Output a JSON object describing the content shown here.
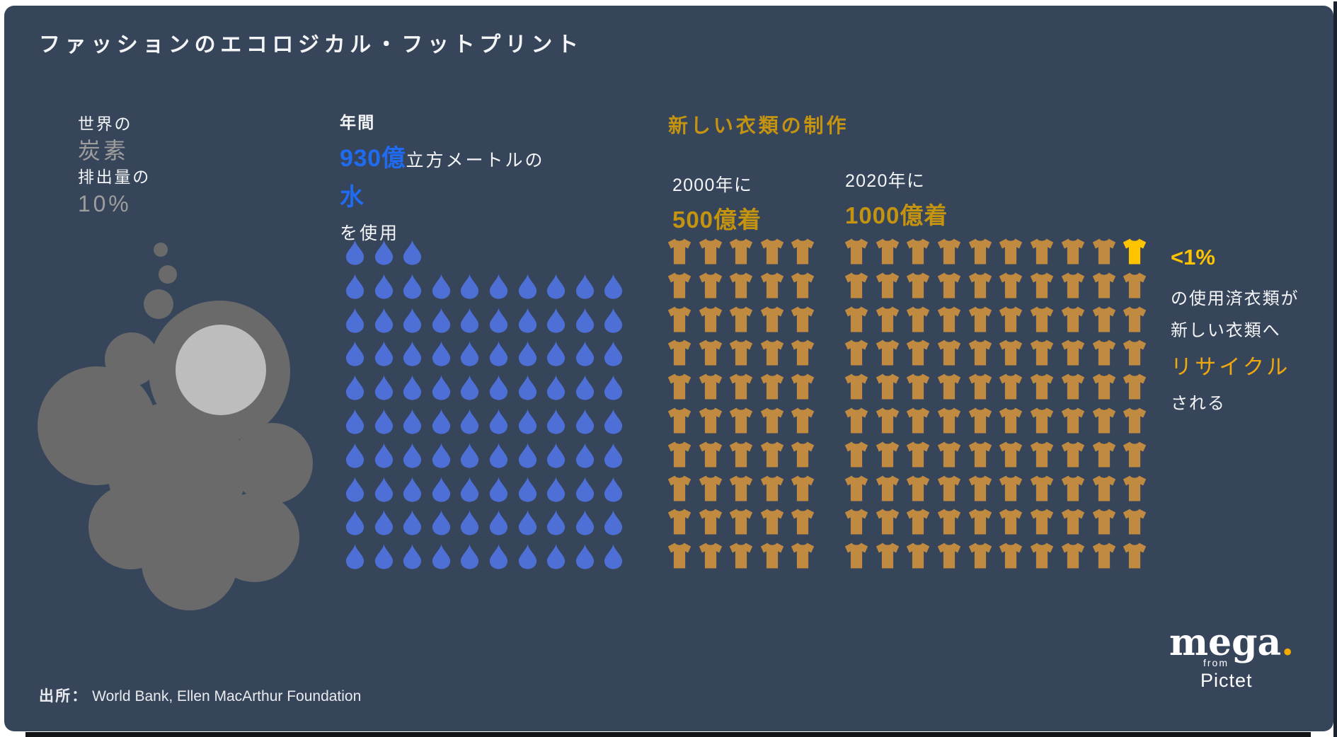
{
  "page": {
    "title": "ファッションのエコロジカル・フットプリント"
  },
  "colors": {
    "background": "#36455a",
    "white_text": "#f4f5f7",
    "gray_text": "#9d9d9d",
    "blue_accent": "#1f6bf2",
    "drop_blue": "#4d6fd6",
    "gold": "#c4930f",
    "gold_bright": "#f0a90c",
    "yellow_highlight": "#ffc400",
    "shirt_tan": "#c08a40",
    "smoke_gray": "#6a6a6a",
    "smoke_light_gray": "#bdbdbd"
  },
  "icons": {
    "smoke": "smoke-cloud-icon",
    "drop": "water-drop-icon",
    "shirt": "tshirt-icon"
  },
  "carbon_section": {
    "line1": "世界の",
    "line2": "炭素",
    "line3": "排出量の",
    "line4": "10%"
  },
  "water_section": {
    "label_annual": "年間",
    "amount": "930億",
    "unit": "立方メートルの",
    "water_word": "水",
    "usage": "を使用"
  },
  "clothing_section": {
    "heading": "新しい衣類の制作",
    "year2000": {
      "year": "2000年に",
      "amount": "500億着"
    },
    "year2020": {
      "year": "2020年に",
      "amount": "1000億着"
    }
  },
  "recycle_note": {
    "stat": "<1%",
    "line1": "の使用済衣類が",
    "line2": "新しい衣類へ",
    "line3": "リサイクル",
    "line4": "される"
  },
  "footer": {
    "source_label": "出所：",
    "source_text": "World Bank, Ellen MacArthur Foundation"
  },
  "logo": {
    "brand": "mega",
    "dot": ".",
    "from_word": "from",
    "company": "Pictet"
  },
  "chart_data": [
    {
      "type": "pictogram",
      "icon": "smoke-cloud",
      "title": "世界の炭素排出量の10%",
      "value": "10%"
    },
    {
      "type": "pictogram",
      "icon": "water-drop",
      "title": "年間930億立方メートルの水を使用",
      "value": "930億立方メートル",
      "unit_per_icon": "10億立方メートル",
      "grid": {
        "icon_count": 93,
        "columns": 10,
        "rows": 10,
        "top_row_count": 3
      }
    },
    {
      "type": "pictogram",
      "icon": "t-shirt",
      "title": "新しい衣類の制作",
      "unit_per_icon": "10億着",
      "series": [
        {
          "name": "2000年に",
          "value": "500億着",
          "grid": {
            "icon_count": 50,
            "columns": 5,
            "rows": 10
          }
        },
        {
          "name": "2020年に",
          "value": "1000億着",
          "grid": {
            "icon_count": 100,
            "columns": 10,
            "rows": 10,
            "highlight_index": 9
          }
        }
      ],
      "highlight_note": "<1%の使用済衣類が新しい衣類へリサイクルされる"
    }
  ]
}
